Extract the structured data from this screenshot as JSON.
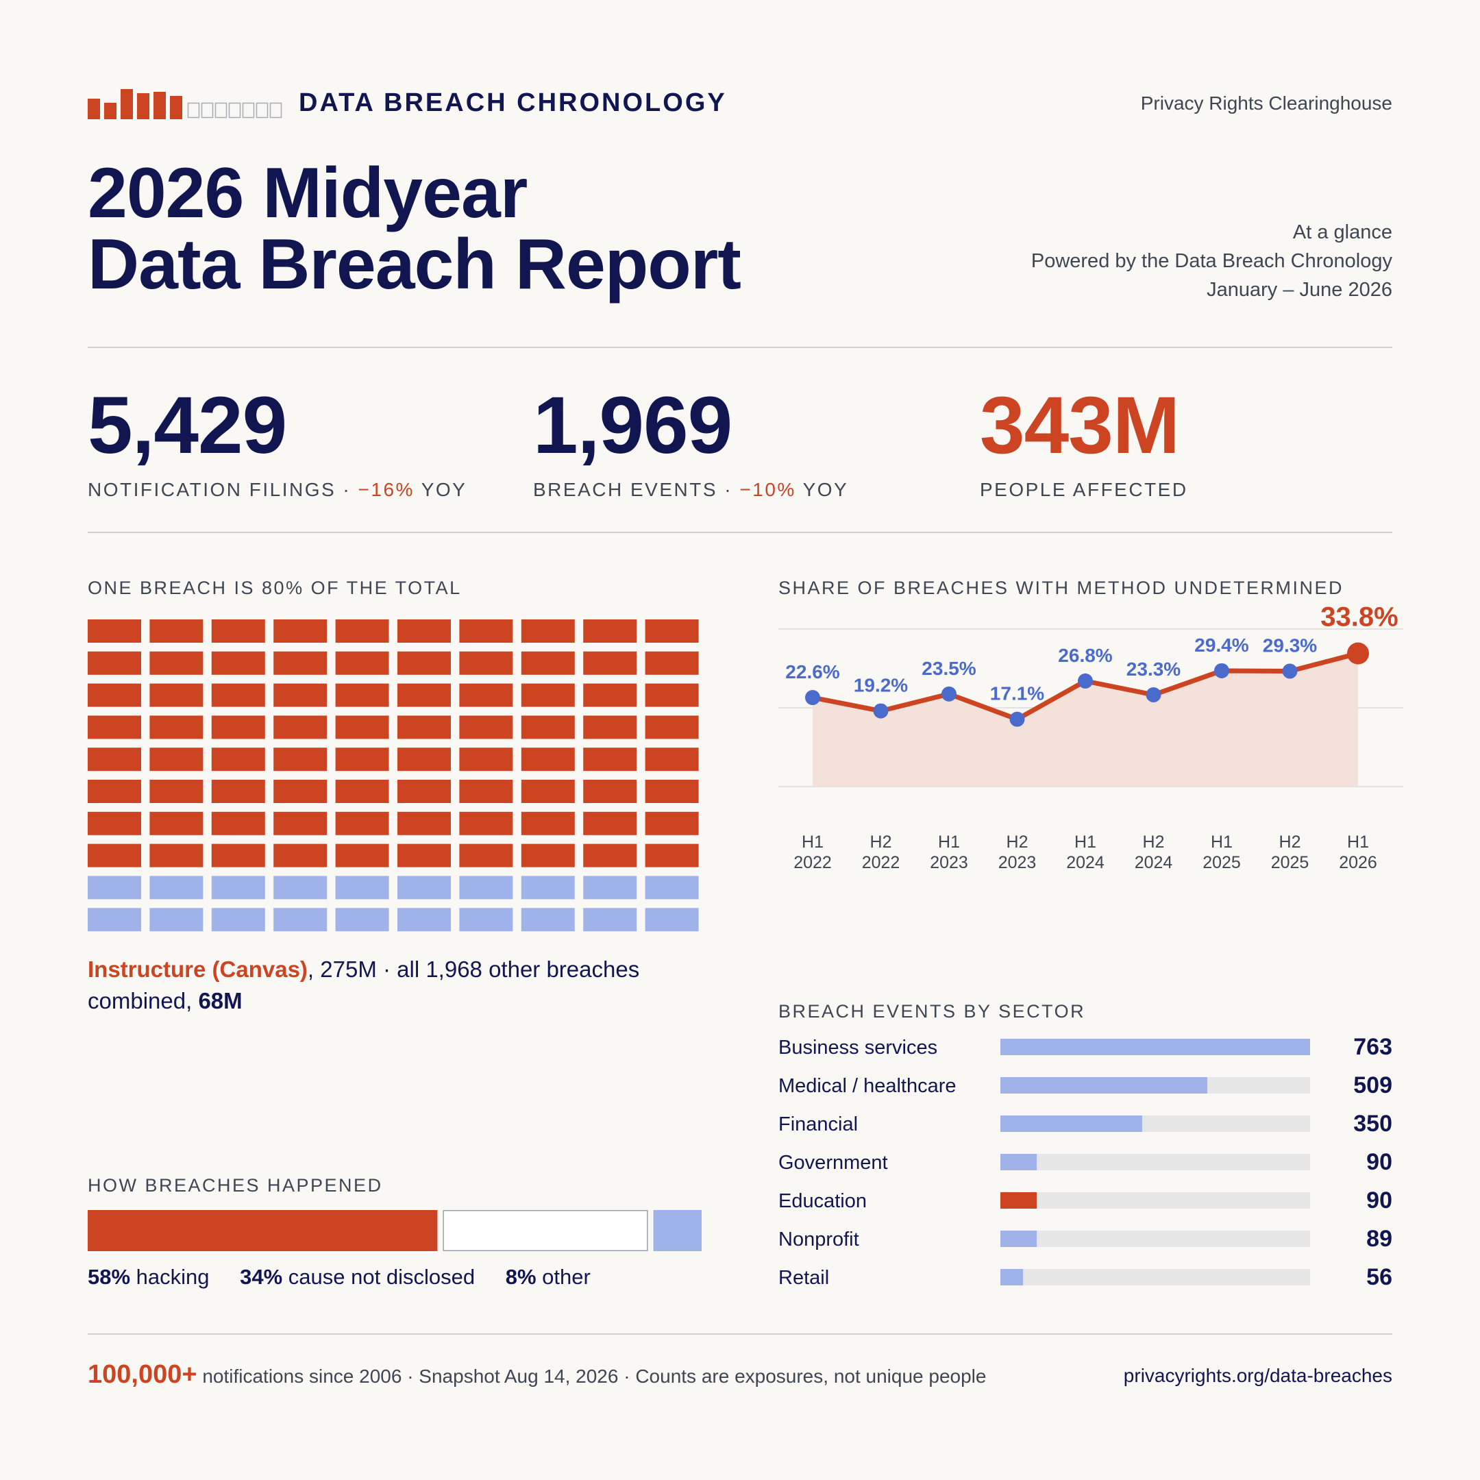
{
  "header": {
    "brand": "DATA BREACH CHRONOLOGY",
    "org": "Privacy Rights Clearinghouse",
    "title_line1": "2026 Midyear",
    "title_line2": "Data Breach Report",
    "glance_line1": "At a glance",
    "glance_line2": "Powered by the Data Breach Chronology",
    "glance_line3": "January – June 2026"
  },
  "kpis": {
    "filings": {
      "value": "5,429",
      "label": "NOTIFICATION FILINGS · ",
      "delta": "−16%",
      "suffix": " YOY"
    },
    "events": {
      "value": "1,969",
      "label": "BREACH EVENTS · ",
      "delta": "−10%",
      "suffix": " YOY"
    },
    "people": {
      "value": "343M",
      "label": "PEOPLE AFFECTED"
    }
  },
  "waffle": {
    "heading": "ONE BREACH IS 80% OF THE TOTAL",
    "caption_highlight": "Instructure (Canvas)",
    "caption_mid": ", 275M · all 1,968 other breaches combined, ",
    "caption_bold": "68M"
  },
  "method": {
    "heading": "HOW BREACHES HAPPENED",
    "items": [
      {
        "pct": "58%",
        "label": " hacking"
      },
      {
        "pct": "34%",
        "label": " cause not disclosed"
      },
      {
        "pct": "8%",
        "label": " other"
      }
    ]
  },
  "line": {
    "heading": "SHARE OF BREACHES WITH METHOD UNDETERMINED"
  },
  "sectors": {
    "heading": "BREACH EVENTS BY SECTOR",
    "rows": [
      {
        "name": "Business services",
        "value": "763"
      },
      {
        "name": "Medical / healthcare",
        "value": "509"
      },
      {
        "name": "Financial",
        "value": "350"
      },
      {
        "name": "Government",
        "value": "90"
      },
      {
        "name": "Education",
        "value": "90"
      },
      {
        "name": "Nonprofit",
        "value": "89"
      },
      {
        "name": "Retail",
        "value": "56"
      }
    ]
  },
  "footer": {
    "big": "100,000+",
    "text": " notifications since 2006 · Snapshot Aug 14, 2026 · Counts are exposures, not unique people",
    "url": "privacyrights.org/data-breaches"
  },
  "colors": {
    "navy": "#121650",
    "orange": "#cc4422",
    "blue": "#4a6bcc",
    "light_blue": "#a0b2ea",
    "gray_text": "#3f4651"
  },
  "chart_data": [
    {
      "type": "waffle",
      "title": "ONE BREACH IS 80% OF THE TOTAL",
      "total_cells": 100,
      "series": [
        {
          "name": "Instructure (Canvas)",
          "value": 275,
          "cells": 80,
          "color": "#cc4422"
        },
        {
          "name": "all 1,968 other breaches combined",
          "value": 68,
          "cells": 20,
          "color": "#a0b2ea"
        }
      ]
    },
    {
      "type": "line",
      "title": "SHARE OF BREACHES WITH METHOD UNDETERMINED",
      "categories": [
        "H1 2022",
        "H2 2022",
        "H1 2023",
        "H2 2023",
        "H1 2024",
        "H2 2024",
        "H1 2025",
        "H2 2025",
        "H1 2026"
      ],
      "values": [
        22.6,
        19.2,
        23.5,
        17.1,
        26.8,
        23.3,
        29.4,
        29.3,
        33.8
      ],
      "value_labels": [
        "22.6%",
        "19.2%",
        "23.5%",
        "17.1%",
        "26.8%",
        "23.3%",
        "29.4%",
        "29.3%",
        "33.8%"
      ],
      "ylim": [
        0,
        40
      ],
      "grid": true,
      "highlight_last": true
    },
    {
      "type": "bar",
      "orientation": "stacked-horizontal",
      "title": "HOW BREACHES HAPPENED",
      "categories": [
        "hacking",
        "cause not disclosed",
        "other"
      ],
      "values": [
        58,
        34,
        8
      ],
      "colors": [
        "#cc4422",
        "#ffffff",
        "#a0b2ea"
      ]
    },
    {
      "type": "bar",
      "orientation": "horizontal",
      "title": "BREACH EVENTS BY SECTOR",
      "categories": [
        "Business services",
        "Medical / healthcare",
        "Financial",
        "Government",
        "Education",
        "Nonprofit",
        "Retail"
      ],
      "values": [
        763,
        509,
        350,
        90,
        90,
        89,
        56
      ],
      "highlight": "Education",
      "xlim": [
        0,
        763
      ]
    }
  ]
}
